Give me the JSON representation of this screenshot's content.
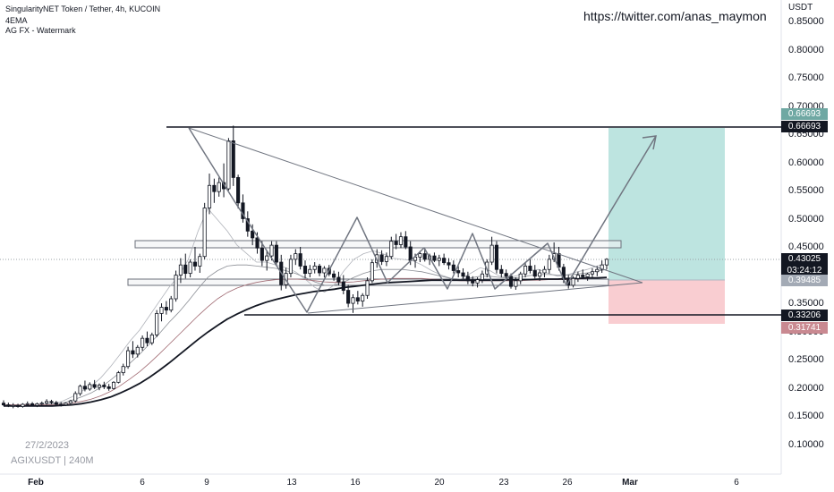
{
  "header": {
    "symbol_line": "SingularityNET Token / Tether, 4h, KUCOIN",
    "indicator_1": "4EMA",
    "indicator_2": "AG FX - Watermark",
    "watermark_url": "https://twitter.com/anas_maymon"
  },
  "bottom_info": {
    "date": "27/2/2023",
    "ticker": "AGIXUSDT | 240M"
  },
  "axis": {
    "currency": "USDT",
    "price_ticks": [
      "0.85000",
      "0.80000",
      "0.75000",
      "0.70000",
      "0.65000",
      "0.60000",
      "0.55000",
      "0.50000",
      "0.45000",
      "0.40000",
      "0.35000",
      "0.30000",
      "0.25000",
      "0.20000",
      "0.15000",
      "0.10000"
    ],
    "time_ticks": [
      "Feb",
      "6",
      "9",
      "13",
      "16",
      "20",
      "23",
      "26",
      "Mar",
      "6"
    ]
  },
  "badges": {
    "target_value": "0.66693",
    "resistance_value": "0.66693",
    "last_price": "0.43025",
    "countdown": "03:24:12",
    "entry_value": "0.39485",
    "support_value": "0.33206",
    "stop_value": "0.31741"
  },
  "colors": {
    "up": "#ffffff",
    "down": "#131722",
    "target_zone": "#b2dfdb",
    "stop_zone": "#f8c8cc",
    "target_badge": "#6fa8a3",
    "stop_badge": "#c98991",
    "entry_badge": "#a3aab5"
  },
  "chart_data": {
    "type": "candlestick",
    "symbol": "AGIXUSDT",
    "interval": "4h",
    "exchange": "KUCOIN",
    "y_range": [
      0.05,
      0.9
    ],
    "date_span": [
      "Feb",
      "Mar 6"
    ],
    "price_levels": {
      "horizontal_resistance": 0.66693,
      "horizontal_support": 0.33206,
      "last_price": 0.43025,
      "entry": 0.39485,
      "target": 0.66693,
      "stop": 0.31741
    },
    "ohlc": [
      [
        0.175,
        0.18,
        0.17,
        0.172
      ],
      [
        0.172,
        0.176,
        0.168,
        0.17
      ],
      [
        0.17,
        0.175,
        0.166,
        0.171
      ],
      [
        0.171,
        0.174,
        0.167,
        0.169
      ],
      [
        0.169,
        0.175,
        0.167,
        0.173
      ],
      [
        0.173,
        0.178,
        0.17,
        0.174
      ],
      [
        0.174,
        0.177,
        0.169,
        0.171
      ],
      [
        0.171,
        0.176,
        0.168,
        0.174
      ],
      [
        0.174,
        0.178,
        0.171,
        0.175
      ],
      [
        0.175,
        0.182,
        0.172,
        0.178
      ],
      [
        0.178,
        0.181,
        0.173,
        0.176
      ],
      [
        0.176,
        0.179,
        0.171,
        0.173
      ],
      [
        0.173,
        0.177,
        0.169,
        0.172
      ],
      [
        0.172,
        0.176,
        0.17,
        0.175
      ],
      [
        0.175,
        0.181,
        0.173,
        0.179
      ],
      [
        0.179,
        0.196,
        0.176,
        0.192
      ],
      [
        0.192,
        0.208,
        0.188,
        0.205
      ],
      [
        0.205,
        0.215,
        0.196,
        0.2
      ],
      [
        0.2,
        0.212,
        0.197,
        0.208
      ],
      [
        0.208,
        0.216,
        0.2,
        0.203
      ],
      [
        0.203,
        0.21,
        0.198,
        0.207
      ],
      [
        0.207,
        0.213,
        0.2,
        0.204
      ],
      [
        0.204,
        0.209,
        0.197,
        0.201
      ],
      [
        0.201,
        0.214,
        0.199,
        0.212
      ],
      [
        0.212,
        0.232,
        0.21,
        0.229
      ],
      [
        0.229,
        0.245,
        0.224,
        0.24
      ],
      [
        0.24,
        0.275,
        0.236,
        0.268
      ],
      [
        0.268,
        0.285,
        0.255,
        0.262
      ],
      [
        0.262,
        0.278,
        0.256,
        0.274
      ],
      [
        0.274,
        0.295,
        0.268,
        0.29
      ],
      [
        0.29,
        0.302,
        0.276,
        0.282
      ],
      [
        0.282,
        0.3,
        0.278,
        0.296
      ],
      [
        0.296,
        0.34,
        0.292,
        0.334
      ],
      [
        0.334,
        0.352,
        0.32,
        0.345
      ],
      [
        0.345,
        0.356,
        0.332,
        0.34
      ],
      [
        0.34,
        0.365,
        0.336,
        0.36
      ],
      [
        0.36,
        0.41,
        0.355,
        0.402
      ],
      [
        0.402,
        0.432,
        0.388,
        0.42
      ],
      [
        0.42,
        0.44,
        0.396,
        0.405
      ],
      [
        0.405,
        0.43,
        0.398,
        0.425
      ],
      [
        0.425,
        0.452,
        0.41,
        0.418
      ],
      [
        0.418,
        0.44,
        0.406,
        0.435
      ],
      [
        0.435,
        0.53,
        0.43,
        0.521
      ],
      [
        0.521,
        0.582,
        0.51,
        0.561
      ],
      [
        0.561,
        0.573,
        0.53,
        0.55
      ],
      [
        0.55,
        0.575,
        0.541,
        0.566
      ],
      [
        0.566,
        0.6,
        0.54,
        0.555
      ],
      [
        0.555,
        0.645,
        0.552,
        0.64
      ],
      [
        0.64,
        0.667,
        0.56,
        0.575
      ],
      [
        0.575,
        0.58,
        0.52,
        0.53
      ],
      [
        0.53,
        0.545,
        0.495,
        0.502
      ],
      [
        0.502,
        0.515,
        0.47,
        0.48
      ],
      [
        0.48,
        0.492,
        0.455,
        0.468
      ],
      [
        0.468,
        0.478,
        0.44,
        0.45
      ],
      [
        0.45,
        0.462,
        0.418,
        0.428
      ],
      [
        0.428,
        0.446,
        0.41,
        0.436
      ],
      [
        0.436,
        0.462,
        0.428,
        0.455
      ],
      [
        0.455,
        0.462,
        0.42,
        0.425
      ],
      [
        0.425,
        0.438,
        0.375,
        0.385
      ],
      [
        0.385,
        0.415,
        0.378,
        0.405
      ],
      [
        0.405,
        0.438,
        0.398,
        0.43
      ],
      [
        0.43,
        0.448,
        0.42,
        0.44
      ],
      [
        0.44,
        0.452,
        0.412,
        0.418
      ],
      [
        0.418,
        0.428,
        0.396,
        0.405
      ],
      [
        0.405,
        0.42,
        0.398,
        0.412
      ],
      [
        0.412,
        0.425,
        0.405,
        0.418
      ],
      [
        0.418,
        0.422,
        0.4,
        0.406
      ],
      [
        0.406,
        0.418,
        0.398,
        0.414
      ],
      [
        0.414,
        0.42,
        0.4,
        0.404
      ],
      [
        0.404,
        0.41,
        0.392,
        0.398
      ],
      [
        0.398,
        0.408,
        0.384,
        0.39
      ],
      [
        0.39,
        0.402,
        0.368,
        0.375
      ],
      [
        0.375,
        0.385,
        0.345,
        0.352
      ],
      [
        0.352,
        0.368,
        0.335,
        0.362
      ],
      [
        0.362,
        0.374,
        0.35,
        0.356
      ],
      [
        0.356,
        0.37,
        0.346,
        0.366
      ],
      [
        0.366,
        0.398,
        0.36,
        0.392
      ],
      [
        0.392,
        0.43,
        0.388,
        0.424
      ],
      [
        0.424,
        0.448,
        0.415,
        0.438
      ],
      [
        0.438,
        0.446,
        0.42,
        0.426
      ],
      [
        0.426,
        0.442,
        0.418,
        0.435
      ],
      [
        0.435,
        0.47,
        0.43,
        0.462
      ],
      [
        0.462,
        0.475,
        0.448,
        0.456
      ],
      [
        0.456,
        0.478,
        0.45,
        0.47
      ],
      [
        0.47,
        0.48,
        0.448,
        0.452
      ],
      [
        0.452,
        0.462,
        0.42,
        0.428
      ],
      [
        0.428,
        0.44,
        0.415,
        0.434
      ],
      [
        0.434,
        0.445,
        0.425,
        0.44
      ],
      [
        0.44,
        0.448,
        0.426,
        0.43
      ],
      [
        0.43,
        0.44,
        0.42,
        0.436
      ],
      [
        0.436,
        0.442,
        0.425,
        0.428
      ],
      [
        0.428,
        0.438,
        0.418,
        0.432
      ],
      [
        0.432,
        0.44,
        0.42,
        0.424
      ],
      [
        0.424,
        0.432,
        0.412,
        0.42
      ],
      [
        0.42,
        0.428,
        0.405,
        0.41
      ],
      [
        0.41,
        0.418,
        0.398,
        0.406
      ],
      [
        0.406,
        0.414,
        0.395,
        0.4
      ],
      [
        0.4,
        0.408,
        0.386,
        0.392
      ],
      [
        0.392,
        0.4,
        0.382,
        0.388
      ],
      [
        0.388,
        0.398,
        0.38,
        0.394
      ],
      [
        0.394,
        0.41,
        0.388,
        0.404
      ],
      [
        0.404,
        0.43,
        0.398,
        0.425
      ],
      [
        0.425,
        0.47,
        0.42,
        0.455
      ],
      [
        0.455,
        0.462,
        0.405,
        0.412
      ],
      [
        0.412,
        0.42,
        0.398,
        0.405
      ],
      [
        0.405,
        0.412,
        0.392,
        0.4
      ],
      [
        0.4,
        0.405,
        0.378,
        0.382
      ],
      [
        0.382,
        0.398,
        0.376,
        0.392
      ],
      [
        0.392,
        0.408,
        0.386,
        0.404
      ],
      [
        0.404,
        0.425,
        0.398,
        0.418
      ],
      [
        0.418,
        0.43,
        0.405,
        0.41
      ],
      [
        0.41,
        0.42,
        0.396,
        0.4
      ],
      [
        0.4,
        0.412,
        0.392,
        0.406
      ],
      [
        0.406,
        0.418,
        0.398,
        0.412
      ],
      [
        0.412,
        0.438,
        0.405,
        0.43
      ],
      [
        0.43,
        0.46,
        0.425,
        0.44
      ],
      [
        0.44,
        0.452,
        0.41,
        0.416
      ],
      [
        0.416,
        0.422,
        0.388,
        0.394
      ],
      [
        0.394,
        0.402,
        0.378,
        0.384
      ],
      [
        0.384,
        0.4,
        0.38,
        0.396
      ],
      [
        0.396,
        0.408,
        0.39,
        0.402
      ],
      [
        0.402,
        0.412,
        0.395,
        0.399
      ],
      [
        0.399,
        0.406,
        0.392,
        0.404
      ],
      [
        0.404,
        0.414,
        0.398,
        0.408
      ],
      [
        0.408,
        0.418,
        0.4,
        0.412
      ],
      [
        0.412,
        0.428,
        0.406,
        0.42
      ],
      [
        0.42,
        0.432,
        0.412,
        0.43
      ]
    ],
    "ema_series": [
      {
        "style": "light",
        "values": [
          0.172,
          0.172,
          0.172,
          0.172,
          0.173,
          0.174,
          0.178,
          0.186,
          0.196,
          0.205,
          0.22,
          0.24,
          0.262,
          0.285,
          0.305,
          0.33,
          0.355,
          0.38,
          0.4,
          0.43,
          0.48,
          0.52,
          0.5,
          0.48,
          0.455,
          0.44,
          0.425,
          0.425,
          0.42,
          0.415,
          0.408,
          0.395,
          0.38,
          0.372,
          0.385,
          0.41,
          0.43,
          0.44,
          0.445,
          0.44,
          0.432,
          0.43,
          0.428,
          0.42,
          0.41,
          0.402,
          0.396,
          0.395,
          0.405,
          0.415,
          0.41,
          0.4,
          0.398,
          0.402,
          0.41,
          0.412,
          0.405,
          0.4,
          0.403,
          0.408,
          0.412,
          0.418,
          0.422
        ]
      },
      {
        "style": "medium",
        "values": [
          0.172,
          0.172,
          0.172,
          0.172,
          0.172,
          0.173,
          0.175,
          0.18,
          0.186,
          0.193,
          0.203,
          0.216,
          0.23,
          0.246,
          0.262,
          0.28,
          0.298,
          0.318,
          0.336,
          0.356,
          0.378,
          0.398,
          0.41,
          0.418,
          0.42,
          0.42,
          0.418,
          0.416,
          0.414,
          0.41,
          0.405,
          0.398,
          0.39,
          0.384,
          0.384,
          0.39,
          0.398,
          0.405,
          0.41,
          0.412,
          0.412,
          0.412,
          0.41,
          0.408,
          0.404,
          0.4,
          0.396,
          0.395,
          0.397,
          0.4,
          0.4,
          0.398,
          0.397,
          0.398,
          0.401,
          0.403,
          0.403,
          0.402,
          0.402,
          0.404,
          0.406,
          0.409,
          0.412
        ]
      },
      {
        "style": "dark",
        "values": [
          0.172,
          0.172,
          0.172,
          0.172,
          0.172,
          0.172,
          0.173,
          0.175,
          0.178,
          0.182,
          0.188,
          0.196,
          0.206,
          0.218,
          0.231,
          0.246,
          0.262,
          0.279,
          0.296,
          0.313,
          0.33,
          0.346,
          0.36,
          0.371,
          0.379,
          0.385,
          0.389,
          0.392,
          0.394,
          0.395,
          0.395,
          0.394,
          0.392,
          0.39,
          0.389,
          0.389,
          0.39,
          0.392,
          0.394,
          0.395,
          0.396,
          0.396,
          0.396,
          0.396,
          0.395,
          0.394,
          0.393,
          0.392,
          0.392,
          0.392,
          0.392,
          0.392,
          0.392,
          0.392,
          0.393,
          0.393,
          0.394,
          0.394,
          0.394,
          0.395,
          0.396,
          0.397,
          0.398
        ]
      },
      {
        "style": "thick",
        "values": [
          0.17,
          0.17,
          0.17,
          0.17,
          0.17,
          0.17,
          0.171,
          0.172,
          0.174,
          0.177,
          0.181,
          0.186,
          0.193,
          0.201,
          0.21,
          0.221,
          0.233,
          0.246,
          0.26,
          0.274,
          0.288,
          0.301,
          0.313,
          0.324,
          0.333,
          0.341,
          0.348,
          0.354,
          0.359,
          0.363,
          0.367,
          0.37,
          0.373,
          0.375,
          0.377,
          0.38,
          0.382,
          0.384,
          0.386,
          0.388,
          0.389,
          0.39,
          0.391,
          0.392,
          0.393,
          0.393,
          0.393,
          0.393,
          0.393,
          0.393,
          0.393,
          0.393,
          0.394,
          0.394,
          0.394,
          0.395,
          0.395,
          0.395,
          0.396,
          0.396,
          0.397,
          0.397,
          0.398
        ]
      }
    ]
  }
}
